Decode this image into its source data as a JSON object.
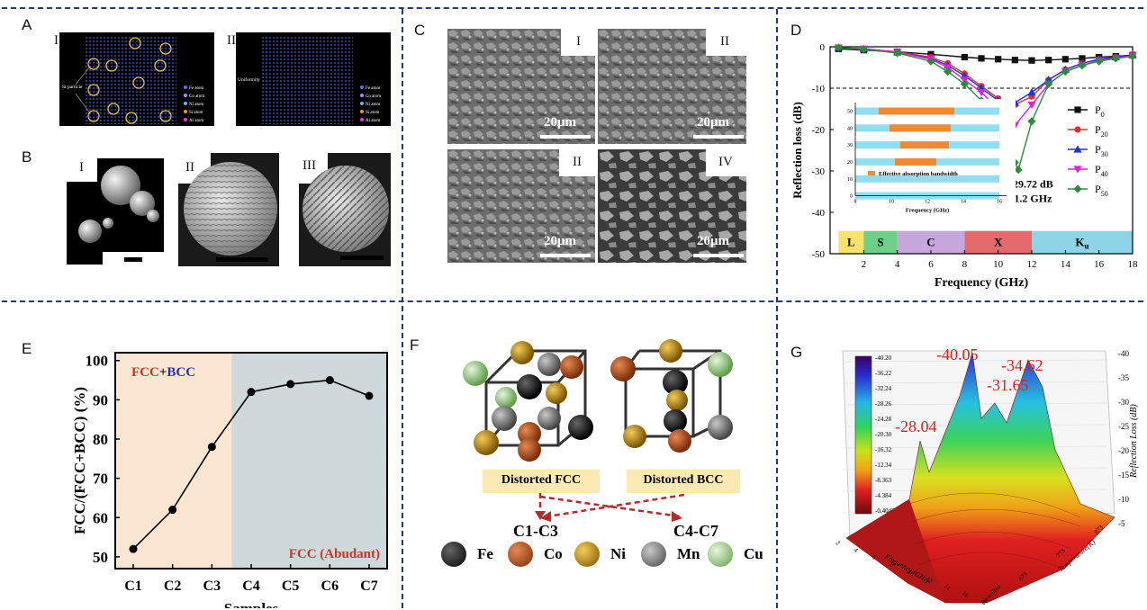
{
  "panels": {
    "A": {
      "label": "A",
      "sub": [
        "I",
        "II"
      ],
      "legend": [
        "Fe atom",
        "Co atom",
        "Ni atom",
        "Si atom",
        "Al atom"
      ],
      "legend_colors": [
        "#5c6cff",
        "#a08bff",
        "#7fa8ff",
        "#e0a020",
        "#e040e0"
      ],
      "annot_I": "Si particle",
      "annot_II": "Uniformity"
    },
    "B": {
      "label": "B",
      "sub": [
        "I",
        "II",
        "III"
      ]
    },
    "C": {
      "label": "C",
      "sub": [
        "I",
        "II",
        "II",
        "IV"
      ],
      "scale": "20μm"
    },
    "D": {
      "label": "D",
      "annotation": "-29.72 dB",
      "annotation2": "11.2 GHz"
    },
    "E": {
      "label": "E",
      "region1_a": "FCC",
      "region1_b": "+",
      "region1_c": "BCC",
      "region2": "FCC (Abudant)"
    },
    "F": {
      "label": "F",
      "box1": "Distorted FCC",
      "box2": "Distorted BCC",
      "group1": "C1-C3",
      "group2": "C4-C7",
      "atoms": [
        {
          "name": "Fe",
          "color": "#111111"
        },
        {
          "name": "Co",
          "color": "#b4501a"
        },
        {
          "name": "Ni",
          "color": "#c9951a"
        },
        {
          "name": "Mn",
          "color": "#777777"
        },
        {
          "name": "Cu",
          "color": "#9ed08a"
        }
      ]
    },
    "G": {
      "label": "G",
      "peaks": [
        "-40.05",
        "-31.65",
        "-34.62",
        "-28.04"
      ],
      "colorbar": [
        "-40.20",
        "-36.22",
        "-32.24",
        "-28.26",
        "-24.28",
        "-20.30",
        "-16.32",
        "-12.34",
        "-8.363",
        "-4.384",
        "-0.4042"
      ],
      "zaxis_ticks": [
        "-40",
        "-35",
        "-30",
        "-25",
        "-20",
        "-15",
        "-10",
        "-5"
      ],
      "zlabel": "Reflection Loss (dB)",
      "xlabel": "Frequency (GHz)",
      "ylabel": "Temperature(K)",
      "xticks": [
        "2",
        "4",
        "6",
        "8",
        "10",
        "12",
        "14",
        "16",
        "18"
      ],
      "yticks": [
        "As-milled",
        "673",
        "773",
        "873"
      ]
    }
  },
  "chart_data": [
    {
      "type": "line",
      "panel": "D",
      "xlabel": "Frequency (GHz)",
      "ylabel": "Reflection loss (dB)",
      "xlim": [
        0,
        18
      ],
      "ylim": [
        -50,
        0
      ],
      "xticks": [
        "2",
        "4",
        "6",
        "8",
        "10",
        "12",
        "14",
        "16",
        "18"
      ],
      "yticks": [
        "0",
        "-10",
        "-20",
        "-30",
        "-40",
        "-50"
      ],
      "bands": [
        {
          "name": "L",
          "from": 0.5,
          "to": 2,
          "color": "#f7e36b"
        },
        {
          "name": "S",
          "from": 2,
          "to": 4,
          "color": "#6fcf8a"
        },
        {
          "name": "C",
          "from": 4,
          "to": 8,
          "color": "#c7a6dc"
        },
        {
          "name": "X",
          "from": 8,
          "to": 12,
          "color": "#e36b6b"
        },
        {
          "name": "Ku",
          "from": 12,
          "to": 18,
          "color": "#8fd3e6"
        }
      ],
      "series": [
        {
          "name": "P0",
          "color": "#111111",
          "marker": "square",
          "x": [
            0.5,
            2,
            4,
            6,
            8,
            9,
            10,
            11,
            12,
            13,
            14,
            15,
            16,
            17,
            18
          ],
          "y": [
            -0.5,
            -0.8,
            -1.2,
            -1.8,
            -2.5,
            -2.8,
            -3,
            -3.2,
            -3.3,
            -3.2,
            -3,
            -2.8,
            -2.5,
            -2.3,
            -2
          ]
        },
        {
          "name": "P20",
          "color": "#e03030",
          "marker": "circle",
          "x": [
            0.5,
            2,
            4,
            6,
            7,
            8,
            9,
            10,
            11,
            12,
            13,
            14,
            15,
            16,
            17,
            18
          ],
          "y": [
            -0.2,
            -0.5,
            -1.2,
            -2.5,
            -4,
            -6.5,
            -9.5,
            -12.5,
            -14,
            -12,
            -8,
            -5.5,
            -4,
            -3,
            -2.5,
            -2
          ]
        },
        {
          "name": "P30",
          "color": "#2233dd",
          "marker": "triangle",
          "x": [
            0.5,
            2,
            4,
            6,
            7,
            8,
            9,
            10,
            11,
            12,
            13,
            14,
            15,
            16,
            17,
            18
          ],
          "y": [
            -0.2,
            -0.5,
            -1.3,
            -2.8,
            -4.5,
            -7,
            -10,
            -13,
            -13.5,
            -11,
            -8,
            -5.5,
            -4,
            -3,
            -2.5,
            -2
          ]
        },
        {
          "name": "P40",
          "color": "#e020e0",
          "marker": "tri-down",
          "x": [
            0.5,
            2,
            4,
            6,
            7,
            8,
            9,
            10,
            11,
            12,
            13,
            14,
            15,
            16,
            17,
            18
          ],
          "y": [
            -0.2,
            -0.5,
            -1.3,
            -3,
            -5,
            -8,
            -11,
            -15,
            -19,
            -14,
            -9,
            -6,
            -4.5,
            -3.3,
            -2.7,
            -2.2
          ]
        },
        {
          "name": "P50",
          "color": "#2e8b3a",
          "marker": "diamond",
          "x": [
            0.5,
            2,
            4,
            6,
            7,
            8,
            9,
            10,
            11,
            11.2,
            12,
            13,
            14,
            15,
            16,
            17,
            18
          ],
          "y": [
            -0.2,
            -0.6,
            -1.5,
            -3.5,
            -6,
            -9,
            -13,
            -19,
            -28,
            -29.72,
            -18,
            -9,
            -6,
            -4.5,
            -3.5,
            -2.8,
            -2.3
          ]
        }
      ],
      "inset": {
        "xlabel": "Frequency (GHz)",
        "legend": "Effective absorption bandwidth",
        "xticks": [
          "8",
          "10",
          "12",
          "14",
          "16"
        ],
        "yticks": [
          "0",
          "10",
          "20",
          "30",
          "40",
          "50"
        ],
        "bars": [
          {
            "p": 50,
            "from": 9.3,
            "to": 13.5
          },
          {
            "p": 40,
            "from": 9.9,
            "to": 13.3
          },
          {
            "p": 30,
            "from": 10.5,
            "to": 13.2
          },
          {
            "p": 20,
            "from": 10.2,
            "to": 12.5
          }
        ]
      }
    },
    {
      "type": "line",
      "panel": "E",
      "xlabel": "Samples",
      "ylabel": "FCC/(FCC+BCC) (%)",
      "categories": [
        "C1",
        "C2",
        "C3",
        "C4",
        "C5",
        "C6",
        "C7"
      ],
      "values": [
        52,
        62,
        78,
        92,
        94,
        95,
        91
      ],
      "ylim": [
        47,
        102
      ],
      "yticks": [
        "50",
        "60",
        "70",
        "80",
        "90",
        "100"
      ]
    }
  ]
}
